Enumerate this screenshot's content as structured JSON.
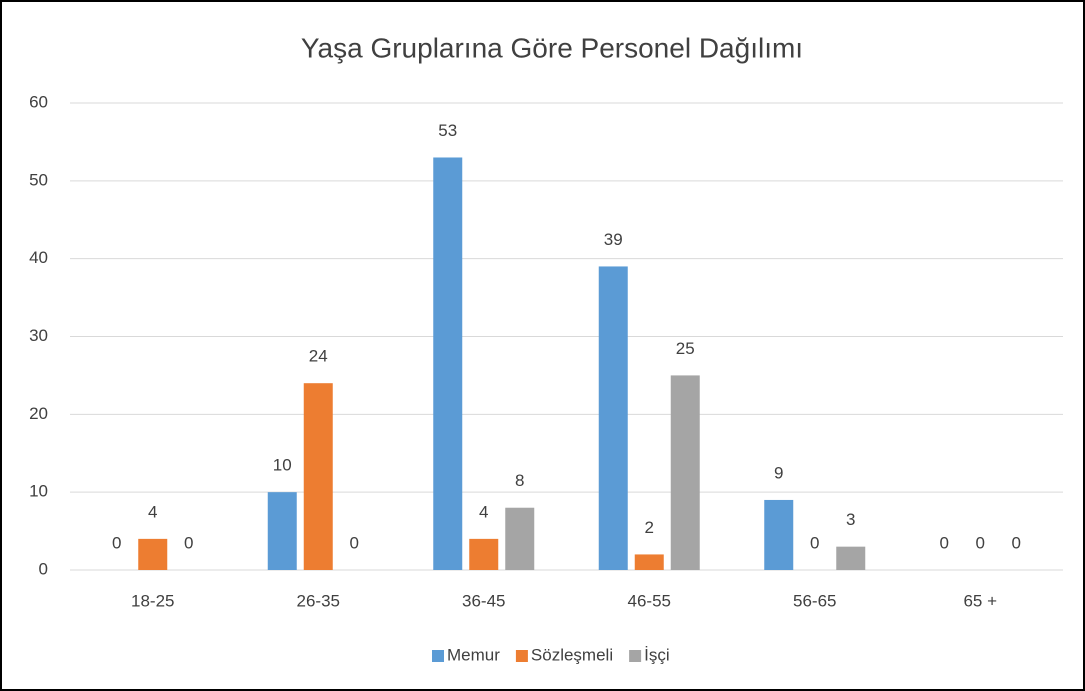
{
  "chart_data": {
    "type": "bar",
    "title": "Yaşa Gruplarına Göre Personel Dağılımı",
    "categories": [
      "18-25",
      "26-35",
      "36-45",
      "46-55",
      "56-65",
      "65 +"
    ],
    "series": [
      {
        "name": "Memur",
        "color": "#5b9bd5",
        "values": [
          0,
          10,
          53,
          39,
          9,
          0
        ]
      },
      {
        "name": "Sözleşmeli",
        "color": "#ed7d31",
        "values": [
          4,
          24,
          4,
          2,
          0,
          0
        ]
      },
      {
        "name": "İşçi",
        "color": "#a5a5a5",
        "values": [
          0,
          0,
          8,
          25,
          3,
          0
        ]
      }
    ],
    "ylim": [
      0,
      60
    ],
    "yticks": [
      0,
      10,
      20,
      30,
      40,
      50,
      60
    ],
    "grid": true,
    "legend": "bottom"
  }
}
